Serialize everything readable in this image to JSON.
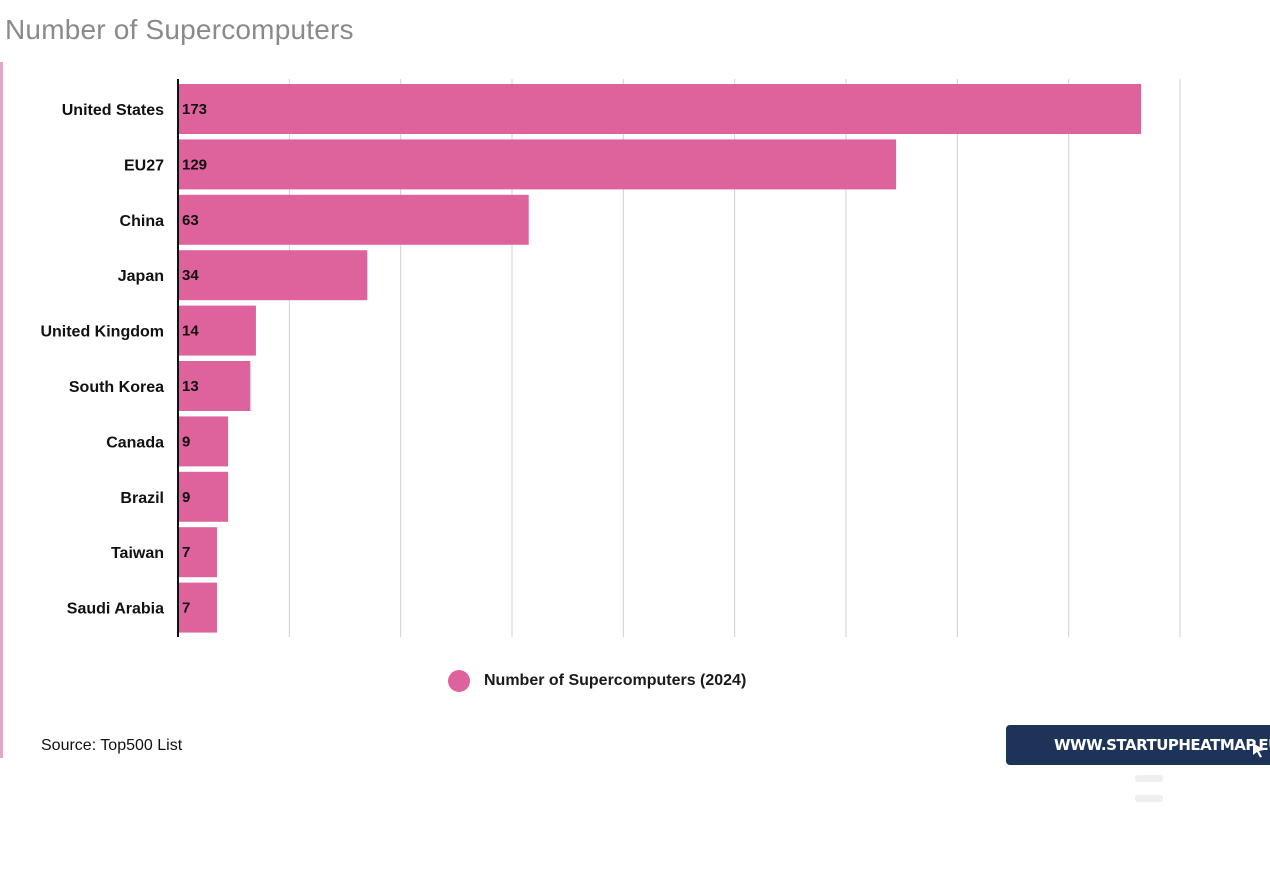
{
  "chart_data": {
    "type": "bar",
    "orientation": "horizontal",
    "title": "Number of Supercomputers",
    "categories": [
      "United States",
      "EU27",
      "China",
      "Japan",
      "United Kingdom",
      "South Korea",
      "Canada",
      "Brazil",
      "Taiwan",
      "Saudi Arabia"
    ],
    "series": [
      {
        "name": "Number of Supercomputers (2024)",
        "values": [
          173,
          129,
          63,
          34,
          14,
          13,
          9,
          9,
          7,
          7
        ]
      }
    ],
    "xlim": [
      0,
      180
    ],
    "grid": true,
    "legend_position": "bottom",
    "colors": {
      "bar": "#de639c",
      "grid": "#d0d0d0",
      "axis": "#111111"
    }
  },
  "source": "Source: Top500 List",
  "badge": {
    "label": "WWW.STARTUPHEATMAP.EU",
    "icon": "cursor-arrow-icon"
  }
}
